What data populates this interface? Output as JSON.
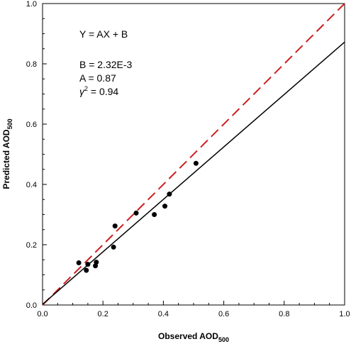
{
  "chart_data": {
    "type": "scatter",
    "xlabel": "Observed AOD",
    "xlabel_sub": "500",
    "ylabel": "Predicted AOD",
    "ylabel_sub": "500",
    "xlim": [
      0,
      1.0
    ],
    "ylim": [
      0,
      1.0
    ],
    "x_ticks": [
      0.0,
      0.2,
      0.4,
      0.6,
      0.8,
      1.0
    ],
    "y_ticks": [
      0.0,
      0.2,
      0.4,
      0.6,
      0.8,
      1.0
    ],
    "x_tick_labels": [
      "0.0",
      "0.2",
      "0.4",
      "0.6",
      "0.8",
      "1.0"
    ],
    "y_tick_labels": [
      "0.0",
      "0.2",
      "0.4",
      "0.6",
      "0.8",
      "1.0"
    ],
    "grid": false,
    "points": [
      {
        "x": 0.12,
        "y": 0.14
      },
      {
        "x": 0.145,
        "y": 0.115
      },
      {
        "x": 0.15,
        "y": 0.135
      },
      {
        "x": 0.175,
        "y": 0.13
      },
      {
        "x": 0.178,
        "y": 0.142
      },
      {
        "x": 0.235,
        "y": 0.192
      },
      {
        "x": 0.24,
        "y": 0.262
      },
      {
        "x": 0.31,
        "y": 0.305
      },
      {
        "x": 0.37,
        "y": 0.3
      },
      {
        "x": 0.405,
        "y": 0.328
      },
      {
        "x": 0.42,
        "y": 0.368
      },
      {
        "x": 0.508,
        "y": 0.47
      }
    ],
    "fit_line": {
      "slope": 0.87,
      "intercept": 0.00232,
      "color": "#000000"
    },
    "one_to_one_line": {
      "slope": 1.0,
      "intercept": 0.0,
      "color": "#cc1f1f",
      "style": "dashed"
    },
    "annotations": {
      "equation": "Y = AX + B",
      "b_text": "B = 2.32E-3",
      "a_text": "A = 0.87",
      "r2_symbol": "γ",
      "r2_sup": "2",
      "r2_value": " = 0.94"
    }
  }
}
